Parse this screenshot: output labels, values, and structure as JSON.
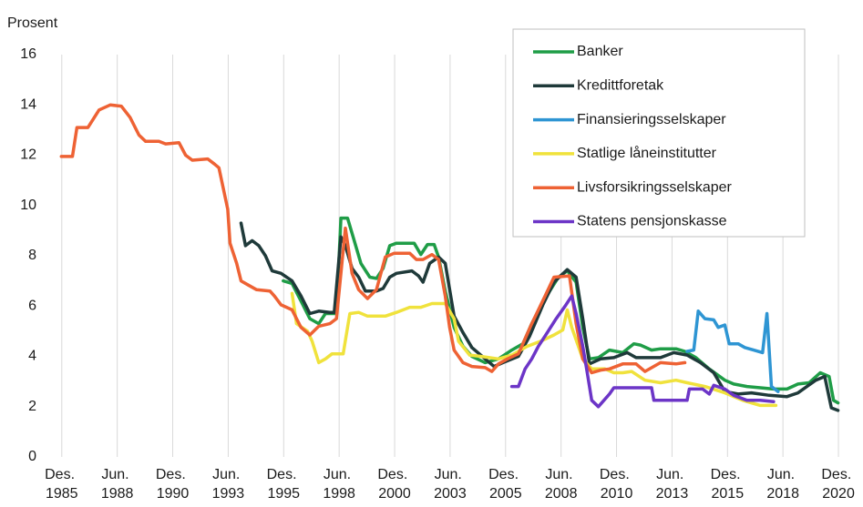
{
  "chart_data": {
    "type": "line",
    "y_label": "Prosent",
    "xlim": [
      1985.6,
      2021.0
    ],
    "ylim": [
      0,
      16
    ],
    "yticks": [
      0,
      2,
      4,
      6,
      8,
      10,
      12,
      14,
      16
    ],
    "xticks": [
      {
        "value": 1985.92,
        "label": "Des. 1985"
      },
      {
        "value": 1988.42,
        "label": "Jun. 1988"
      },
      {
        "value": 1990.92,
        "label": "Des. 1990"
      },
      {
        "value": 1993.42,
        "label": "Jun. 1993"
      },
      {
        "value": 1995.92,
        "label": "Des. 1995"
      },
      {
        "value": 1998.42,
        "label": "Jun. 1998"
      },
      {
        "value": 2000.92,
        "label": "Des. 2000"
      },
      {
        "value": 2003.42,
        "label": "Jun. 2003"
      },
      {
        "value": 2005.92,
        "label": "Des. 2005"
      },
      {
        "value": 2008.42,
        "label": "Jun. 2008"
      },
      {
        "value": 2010.92,
        "label": "Des. 2010"
      },
      {
        "value": 2013.42,
        "label": "Jun. 2013"
      },
      {
        "value": 2015.92,
        "label": "Des. 2015"
      },
      {
        "value": 2018.42,
        "label": "Jun. 2018"
      },
      {
        "value": 2020.92,
        "label": "Des. 2020"
      }
    ],
    "grid": true,
    "legend": "upper right",
    "series": [
      {
        "name": "Banker",
        "color": "#1f9d47",
        "x": [
          1995.9,
          1996.3,
          1996.7,
          1997.1,
          1997.5,
          1997.8,
          1998.3,
          1998.5,
          1998.8,
          1999.1,
          1999.4,
          1999.8,
          2000.1,
          2000.4,
          2000.7,
          2001.0,
          2001.8,
          2002.1,
          2002.4,
          2002.7,
          2002.9,
          2003.2,
          2003.6,
          2004.0,
          2004.4,
          2005.0,
          2005.6,
          2006.2,
          2006.7,
          2007.1,
          2007.7,
          2008.3,
          2008.7,
          2009.1,
          2009.4,
          2009.7,
          2010.1,
          2010.6,
          2011.2,
          2011.7,
          2012.0,
          2012.5,
          2012.9,
          2013.6,
          2014.0,
          2014.5,
          2015.1,
          2015.8,
          2016.2,
          2016.8,
          2017.4,
          2018.0,
          2018.6,
          2019.1,
          2019.6,
          2020.1,
          2020.5,
          2020.7,
          2020.9
        ],
        "values": [
          7.0,
          6.9,
          6.2,
          5.5,
          5.3,
          5.7,
          5.7,
          9.5,
          9.5,
          8.6,
          7.7,
          7.15,
          7.1,
          7.5,
          8.4,
          8.5,
          8.5,
          8.05,
          8.45,
          8.45,
          7.95,
          6.6,
          5.15,
          4.4,
          4.0,
          3.75,
          3.9,
          4.25,
          4.5,
          5.3,
          6.3,
          7.15,
          7.4,
          6.95,
          5.15,
          3.9,
          3.95,
          4.25,
          4.15,
          4.5,
          4.45,
          4.25,
          4.3,
          4.3,
          4.2,
          3.95,
          3.5,
          3.05,
          2.9,
          2.8,
          2.75,
          2.7,
          2.7,
          2.9,
          2.95,
          3.35,
          3.2,
          2.25,
          2.15
        ]
      },
      {
        "name": "Kredittforetak",
        "color": "#1f3a3a",
        "x": [
          1994.0,
          1994.2,
          1994.5,
          1994.8,
          1995.1,
          1995.4,
          1995.8,
          1996.3,
          1996.7,
          1997.1,
          1997.5,
          1998.0,
          1998.2,
          1998.5,
          1998.7,
          1999.0,
          1999.3,
          1999.6,
          2000.1,
          2000.4,
          2000.7,
          2001.0,
          2001.7,
          2002.0,
          2002.2,
          2002.5,
          2002.9,
          2003.2,
          2003.6,
          2004.0,
          2004.4,
          2005.0,
          2005.4,
          2005.8,
          2006.5,
          2007.0,
          2007.6,
          2008.1,
          2008.7,
          2009.1,
          2009.4,
          2009.7,
          2010.2,
          2010.8,
          2011.4,
          2011.8,
          2012.5,
          2012.9,
          2013.5,
          2014.1,
          2014.7,
          2015.3,
          2015.8,
          2016.4,
          2017.0,
          2017.8,
          2018.6,
          2019.1,
          2019.9,
          2020.3,
          2020.6,
          2020.9
        ],
        "values": [
          9.3,
          8.4,
          8.6,
          8.4,
          8.0,
          7.4,
          7.3,
          7.0,
          6.4,
          5.7,
          5.8,
          5.75,
          5.75,
          8.75,
          8.4,
          7.5,
          7.15,
          6.6,
          6.6,
          6.7,
          7.15,
          7.3,
          7.4,
          7.2,
          6.95,
          7.7,
          7.95,
          7.7,
          5.6,
          4.95,
          4.35,
          3.9,
          3.6,
          3.75,
          4.0,
          4.8,
          6.05,
          6.95,
          7.45,
          7.15,
          5.5,
          3.7,
          3.9,
          3.95,
          4.15,
          3.95,
          3.95,
          3.95,
          4.15,
          4.05,
          3.75,
          3.35,
          2.6,
          2.5,
          2.55,
          2.45,
          2.4,
          2.55,
          3.05,
          3.2,
          1.95,
          1.85
        ]
      },
      {
        "name": "Finansieringsselskaper",
        "color": "#2e95d3",
        "x": [
          2014.1,
          2014.4,
          2014.6,
          2014.9,
          2015.3,
          2015.5,
          2015.8,
          2016.0,
          2016.4,
          2016.7,
          2017.1,
          2017.5,
          2017.7,
          2017.9,
          2018.2
        ],
        "values": [
          4.2,
          4.25,
          5.8,
          5.5,
          5.45,
          5.15,
          5.25,
          4.5,
          4.5,
          4.35,
          4.25,
          4.15,
          5.7,
          2.8,
          2.6
        ]
      },
      {
        "name": "Statlige låneinstitutter",
        "color": "#f0e23c",
        "x": [
          1996.3,
          1996.5,
          1997.0,
          1997.2,
          1997.5,
          1997.8,
          1998.1,
          1998.6,
          1998.9,
          1999.3,
          1999.7,
          2000.5,
          2001.0,
          2001.6,
          2002.1,
          2002.6,
          2003.2,
          2003.6,
          2003.8,
          2004.3,
          2004.8,
          2005.6,
          2006.2,
          2006.9,
          2007.5,
          2008.1,
          2008.5,
          2008.7,
          2008.9,
          2009.4,
          2009.8,
          2010.4,
          2010.8,
          2011.2,
          2011.6,
          2012.2,
          2012.9,
          2013.6,
          2014.1,
          2014.9,
          2015.8,
          2016.6,
          2017.4,
          2018.1
        ],
        "values": [
          6.5,
          5.3,
          5.0,
          4.6,
          3.75,
          3.9,
          4.1,
          4.1,
          5.7,
          5.75,
          5.6,
          5.6,
          5.75,
          5.95,
          5.95,
          6.1,
          6.1,
          5.5,
          4.6,
          4.05,
          4.0,
          3.9,
          4.05,
          4.4,
          4.6,
          4.85,
          5.05,
          5.85,
          5.15,
          3.9,
          3.5,
          3.5,
          3.35,
          3.35,
          3.4,
          3.05,
          2.95,
          3.05,
          2.95,
          2.8,
          2.55,
          2.25,
          2.05,
          2.05
        ]
      },
      {
        "name": "Livsforsikringsselskaper",
        "color": "#ee6234",
        "x": [
          1985.9,
          1986.4,
          1986.6,
          1987.1,
          1987.6,
          1988.1,
          1988.6,
          1989.0,
          1989.4,
          1989.7,
          1990.3,
          1990.6,
          1991.2,
          1991.5,
          1991.8,
          1992.5,
          1992.8,
          1993.0,
          1993.4,
          1993.5,
          1993.8,
          1994.0,
          1994.3,
          1994.7,
          1995.3,
          1995.5,
          1995.8,
          1996.3,
          1996.7,
          1997.1,
          1997.5,
          1998.0,
          1998.3,
          1998.5,
          1998.7,
          1999.0,
          1999.3,
          1999.7,
          2000.1,
          2000.5,
          2000.9,
          2001.6,
          2001.9,
          2002.2,
          2002.6,
          2002.9,
          2003.2,
          2003.4,
          2003.6,
          2004.0,
          2004.4,
          2005.0,
          2005.3,
          2005.6,
          2006.0,
          2006.5,
          2007.1,
          2007.7,
          2008.1,
          2008.8,
          2009.1,
          2009.4,
          2009.8,
          2010.2,
          2010.6,
          2011.2,
          2011.8,
          2012.2,
          2012.9,
          2013.6,
          2014.0
        ],
        "values": [
          11.95,
          11.95,
          13.1,
          13.1,
          13.8,
          14.0,
          13.95,
          13.5,
          12.8,
          12.55,
          12.55,
          12.45,
          12.5,
          12.0,
          11.8,
          11.85,
          11.65,
          11.5,
          9.85,
          8.5,
          7.7,
          7.0,
          6.85,
          6.65,
          6.6,
          6.4,
          6.05,
          5.85,
          5.15,
          4.85,
          5.2,
          5.3,
          5.5,
          7.3,
          9.1,
          7.3,
          6.65,
          6.3,
          6.65,
          7.95,
          8.1,
          8.1,
          7.85,
          7.85,
          8.05,
          7.85,
          6.4,
          5.15,
          4.25,
          3.75,
          3.6,
          3.55,
          3.4,
          3.7,
          3.9,
          4.1,
          5.3,
          6.4,
          7.15,
          7.2,
          5.3,
          3.9,
          3.35,
          3.45,
          3.5,
          3.7,
          3.7,
          3.4,
          3.75,
          3.7,
          3.75
        ]
      },
      {
        "name": "Statens pensjonskasse",
        "color": "#6c35c7",
        "x": [
          2006.2,
          2006.5,
          2006.8,
          2007.1,
          2007.4,
          2007.8,
          2008.2,
          2008.6,
          2008.9,
          2009.1,
          2009.4,
          2009.6,
          2009.8,
          2010.1,
          2010.6,
          2010.8,
          2012.5,
          2012.6,
          2014.1,
          2014.2,
          2014.8,
          2015.1,
          2015.3,
          2015.8,
          2016.2,
          2016.8,
          2017.4,
          2018.0
        ],
        "values": [
          2.8,
          2.8,
          3.5,
          3.9,
          4.4,
          4.95,
          5.5,
          6.0,
          6.4,
          5.7,
          4.4,
          3.35,
          2.25,
          2.0,
          2.5,
          2.75,
          2.75,
          2.25,
          2.25,
          2.7,
          2.7,
          2.5,
          2.85,
          2.7,
          2.45,
          2.25,
          2.25,
          2.2
        ]
      }
    ]
  }
}
